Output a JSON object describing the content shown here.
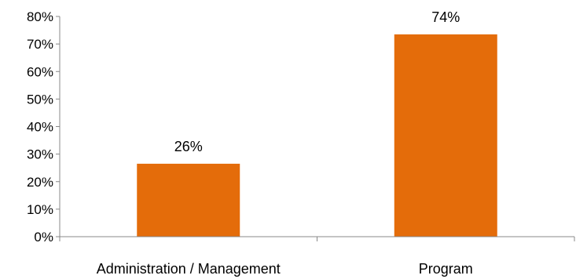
{
  "chart_data": {
    "type": "bar",
    "categories": [
      "Administration / Management",
      "Program"
    ],
    "values": [
      26.5,
      73.5
    ],
    "data_labels": [
      "26%",
      "74%"
    ],
    "ylim": [
      0,
      80
    ],
    "ytick_values": [
      0,
      10,
      20,
      30,
      40,
      50,
      60,
      70,
      80
    ],
    "ytick_labels": [
      "0%",
      "10%",
      "20%",
      "30%",
      "40%",
      "50%",
      "60%",
      "70%",
      "80%"
    ],
    "title": "",
    "xlabel": "",
    "ylabel": "",
    "grid": false,
    "legend": "none",
    "bar_color": "#E46C0A"
  }
}
